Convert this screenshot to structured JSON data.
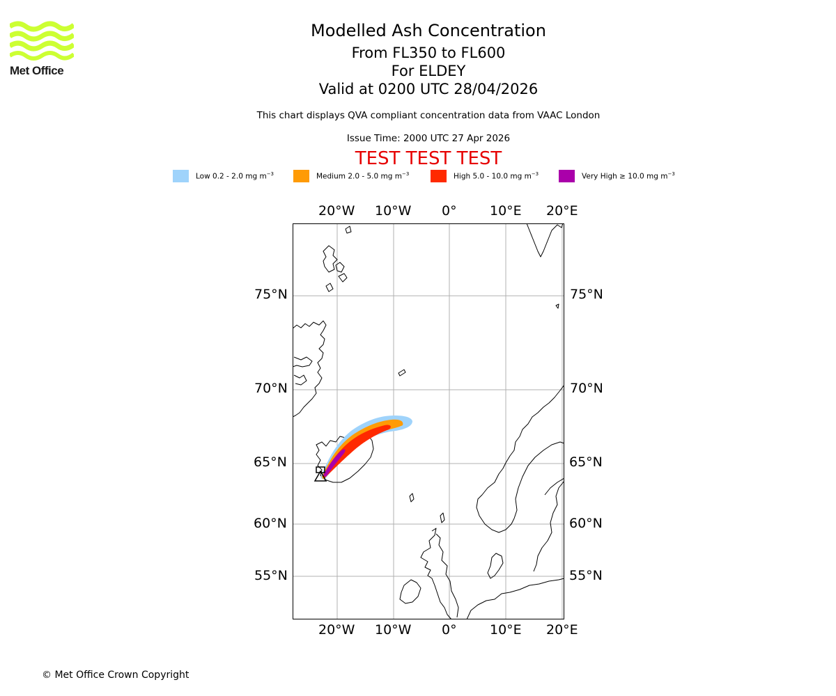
{
  "logo": {
    "text": "Met Office",
    "color": "#ccff33"
  },
  "header": {
    "title": "Modelled Ash Concentration",
    "levels": "From FL350 to FL600",
    "location": "For ELDEY",
    "valid": "Valid at 0200 UTC 28/04/2026",
    "qva_note": "This chart displays QVA compliant concentration data from VAAC London",
    "issue_time": "Issue Time: 2000 UTC 27 Apr 2026",
    "test_banner": "TEST TEST TEST",
    "test_color": "#e60000"
  },
  "legend": [
    {
      "label": "Low 0.2 - 2.0 mg m",
      "sup": "−3",
      "color": "#9fd3fb"
    },
    {
      "label": "Medium 2.0 - 5.0 mg m",
      "sup": "−3",
      "color": "#ff9b05"
    },
    {
      "label": "High 5.0 - 10.0 mg m",
      "sup": "−3",
      "color": "#ff2a00"
    },
    {
      "label": "Very High  ≥  10.0 mg m",
      "sup": "−3",
      "color": "#aa00aa"
    }
  ],
  "map": {
    "projection": "polar stereographic",
    "lon_labels": [
      "20°W",
      "10°W",
      "0°",
      "10°E",
      "20°E"
    ],
    "lat_labels": [
      "75°N",
      "70°N",
      "65°N",
      "60°N",
      "55°N"
    ],
    "volcano_symbol": "triangle-icon"
  },
  "footer": {
    "copyright": "© Met Office Crown Copyright"
  }
}
